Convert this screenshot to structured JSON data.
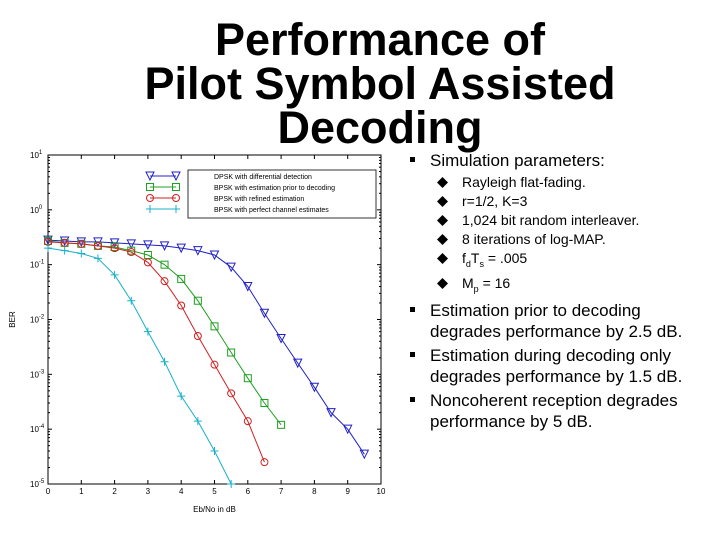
{
  "slide": {
    "title_lines": [
      "Performance of",
      "Pilot Symbol Assisted",
      "Decoding"
    ]
  },
  "bullets": {
    "main": "Simulation parameters:",
    "sub": [
      "Rayleigh flat-fading.",
      "r=1/2, K=3",
      "1,024 bit random interleaver.",
      "8 iterations of log-MAP."
    ],
    "fdts": {
      "f": "f",
      "f_sub": "d",
      "t": "T",
      "t_sub": "s",
      "rest": " = .005"
    },
    "mp": {
      "m": "M",
      "m_sub": "p",
      "rest": " = 16"
    },
    "points": [
      "Estimation prior to decoding degrades performance by 2.5 dB.",
      "Estimation during decoding only degrades performance by 1.5 dB.",
      "Noncoherent reception degrades performance by 5 dB."
    ]
  },
  "chart_data": {
    "type": "line",
    "xlabel": "Eb/No in dB",
    "ylabel": "BER",
    "x_ticks": [
      "0",
      "1",
      "2",
      "3",
      "4",
      "5",
      "6",
      "7",
      "8",
      "9",
      "10"
    ],
    "y_tick_labels": [
      "10^1",
      "10^0",
      "10^-1",
      "10^-2",
      "10^-3",
      "10^-4",
      "10^-5"
    ],
    "xlim": [
      0,
      10
    ],
    "ylim_log10": [
      -5,
      1
    ],
    "log_y": true,
    "grid": false,
    "legend_position": "top-right",
    "series": [
      {
        "name": "DPSK with differential detection",
        "color": "#2020c8",
        "marker": "triangle-down",
        "x": [
          0,
          0.5,
          1,
          1.5,
          2,
          2.5,
          3,
          3.5,
          4,
          4.5,
          5,
          5.5,
          6,
          6.5,
          7,
          7.5,
          8,
          8.5,
          9,
          9.5
        ],
        "y": [
          0.28,
          0.27,
          0.26,
          0.26,
          0.25,
          0.24,
          0.23,
          0.22,
          0.2,
          0.18,
          0.15,
          0.09,
          0.04,
          0.013,
          0.0045,
          0.0016,
          0.00058,
          0.0002,
          0.0001,
          3.5e-05
        ]
      },
      {
        "name": "BPSK with estimation prior to decoding",
        "color": "#20a020",
        "marker": "square",
        "x": [
          0,
          0.5,
          1,
          1.5,
          2,
          2.5,
          3,
          3.5,
          4,
          4.5,
          5,
          5.5,
          6,
          6.5,
          7
        ],
        "y": [
          0.27,
          0.25,
          0.24,
          0.22,
          0.21,
          0.18,
          0.15,
          0.1,
          0.055,
          0.022,
          0.0075,
          0.0025,
          0.00085,
          0.0003,
          0.00012
        ]
      },
      {
        "name": "BPSK with refined estimation",
        "color": "#d02020",
        "marker": "circle",
        "x": [
          0,
          0.5,
          1,
          1.5,
          2,
          2.5,
          3,
          3.5,
          4,
          4.5,
          5,
          5.5,
          6,
          6.5
        ],
        "y": [
          0.26,
          0.25,
          0.24,
          0.22,
          0.2,
          0.17,
          0.11,
          0.05,
          0.018,
          0.005,
          0.0015,
          0.00045,
          0.00014,
          2.5e-05
        ]
      },
      {
        "name": "BPSK with perfect channel estimates",
        "color": "#18b0c8",
        "marker": "plus",
        "x": [
          0,
          0.5,
          1,
          1.5,
          2,
          2.5,
          3,
          3.5,
          4,
          4.5,
          5,
          5.5
        ],
        "y": [
          0.2,
          0.18,
          0.16,
          0.13,
          0.065,
          0.022,
          0.006,
          0.0017,
          0.0004,
          0.00014,
          4e-05,
          1e-05
        ]
      }
    ]
  }
}
